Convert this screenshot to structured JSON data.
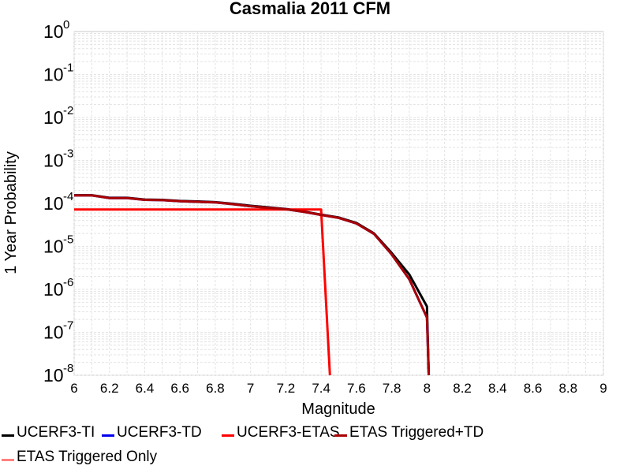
{
  "chart_data": {
    "type": "line",
    "title": "Casmalia 2011 CFM",
    "xlabel": "Magnitude",
    "ylabel": "1 Year Probability",
    "xlim": [
      6,
      9
    ],
    "ylim": [
      1e-08,
      1
    ],
    "yscale": "log",
    "grid": true,
    "legend_position": "bottom",
    "x_ticks": [
      "6",
      "6.2",
      "6.4",
      "6.6",
      "6.8",
      "7",
      "7.2",
      "7.4",
      "7.6",
      "7.8",
      "8",
      "8.2",
      "8.4",
      "8.6",
      "8.8",
      "9"
    ],
    "y_ticks": [
      {
        "base": "10",
        "exp": "0"
      },
      {
        "base": "10",
        "exp": "-1"
      },
      {
        "base": "10",
        "exp": "-2"
      },
      {
        "base": "10",
        "exp": "-3"
      },
      {
        "base": "10",
        "exp": "-4"
      },
      {
        "base": "10",
        "exp": "-5"
      },
      {
        "base": "10",
        "exp": "-6"
      },
      {
        "base": "10",
        "exp": "-7"
      },
      {
        "base": "10",
        "exp": "-8"
      }
    ],
    "series": [
      {
        "name": "UCERF3-TI",
        "color": "#000000",
        "x": [
          6.0,
          6.1,
          6.2,
          6.3,
          6.4,
          6.5,
          6.6,
          6.7,
          6.8,
          6.9,
          7.0,
          7.1,
          7.2,
          7.3,
          7.4,
          7.5,
          7.6,
          7.7,
          7.8,
          7.9,
          8.0,
          8.01
        ],
        "y": [
          0.000155,
          0.000155,
          0.000135,
          0.000135,
          0.000123,
          0.000121,
          0.000114,
          0.000111,
          0.000107,
          9.8e-05,
          8.8e-05,
          8.1e-05,
          7.4e-05,
          6.5e-05,
          5.5e-05,
          4.7e-05,
          3.5e-05,
          2e-05,
          7e-06,
          2.2e-06,
          4e-07,
          1e-08
        ]
      },
      {
        "name": "UCERF3-TD",
        "color": "#0000ee",
        "x": [
          6.0,
          6.1,
          6.2,
          6.3,
          6.4,
          6.5,
          6.6,
          6.7,
          6.8,
          6.9,
          7.0,
          7.1,
          7.2,
          7.3,
          7.4,
          7.5,
          7.6,
          7.7,
          7.8,
          7.9,
          8.0,
          8.01
        ],
        "y": [
          0.000153,
          0.000153,
          0.000133,
          0.000133,
          0.000121,
          0.000119,
          0.000112,
          0.000109,
          0.000105,
          9.6e-05,
          8.6e-05,
          7.9e-05,
          7.3e-05,
          6.4e-05,
          5.4e-05,
          4.6e-05,
          3.4e-05,
          1.95e-05,
          6.5e-06,
          1.7e-06,
          2.2e-07,
          1e-08
        ]
      },
      {
        "name": "UCERF3-ETAS",
        "color": "#ff0000",
        "x": [
          6.0,
          7.4,
          7.45
        ],
        "y": [
          7.2e-05,
          7.2e-05,
          1e-08
        ]
      },
      {
        "name": "ETAS Triggered+TD",
        "color": "#aa0000",
        "x": [
          6.0,
          6.1,
          6.2,
          6.3,
          6.4,
          6.5,
          6.6,
          6.7,
          6.8,
          6.9,
          7.0,
          7.1,
          7.2,
          7.3,
          7.4,
          7.5,
          7.6,
          7.7,
          7.8,
          7.9,
          8.0,
          8.01
        ],
        "y": [
          0.000153,
          0.000153,
          0.000133,
          0.000133,
          0.000121,
          0.000119,
          0.000112,
          0.000109,
          0.000105,
          9.6e-05,
          8.6e-05,
          7.9e-05,
          7.3e-05,
          6.4e-05,
          5.4e-05,
          4.6e-05,
          3.4e-05,
          1.95e-05,
          6.5e-06,
          1.7e-06,
          2.2e-07,
          1e-08
        ]
      },
      {
        "name": "ETAS Triggered Only",
        "color": "#ff8080",
        "x": [],
        "y": []
      }
    ]
  }
}
